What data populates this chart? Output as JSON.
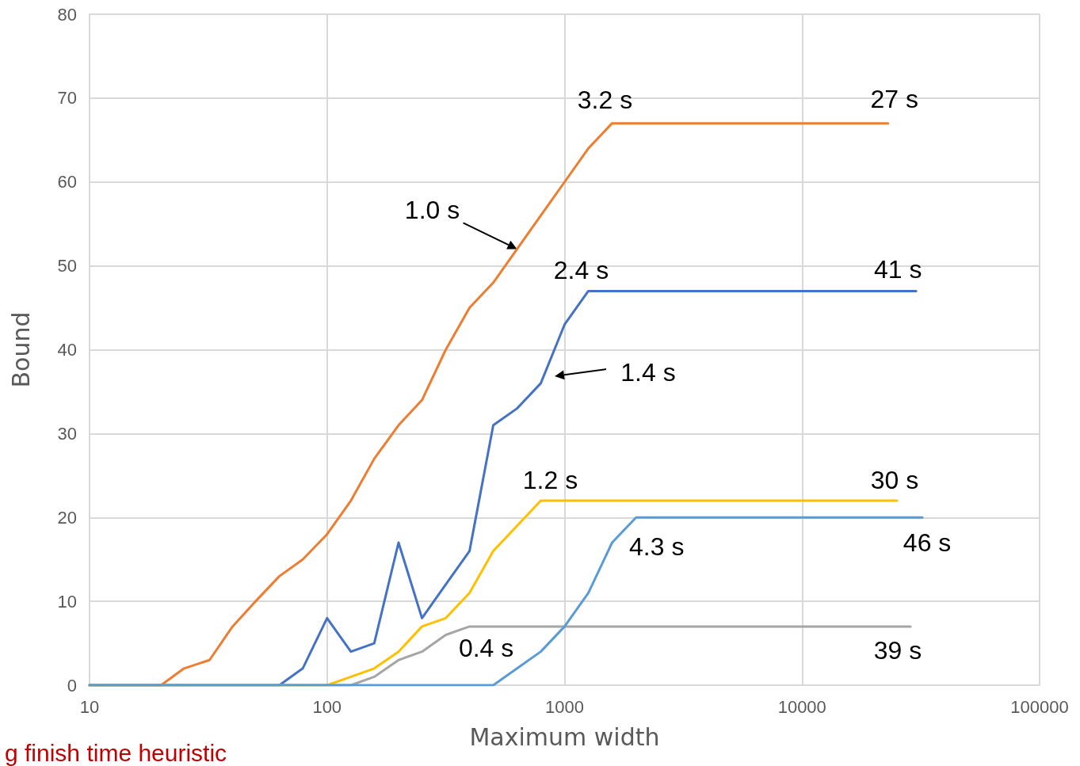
{
  "chart_data": {
    "type": "line",
    "xlabel": "Maximum width",
    "ylabel": "Bound",
    "log": "x",
    "xlim": [
      10,
      100000
    ],
    "xticks": [
      10,
      100,
      1000,
      10000,
      100000
    ],
    "ylim": [
      0,
      80
    ],
    "yticks": [
      0,
      10,
      20,
      30,
      40,
      50,
      60,
      70,
      80
    ],
    "grid": true,
    "marker": "none",
    "line_style": "solid",
    "series": [
      {
        "color": "#ed7d31",
        "x": [
          10,
          20,
          25,
          32,
          40,
          50,
          63,
          79,
          100,
          126,
          158,
          200,
          251,
          316,
          398,
          501,
          631,
          794,
          1000,
          1259,
          1585,
          23000
        ],
        "values": [
          0,
          0,
          2,
          3,
          7,
          10,
          13,
          15,
          18,
          22,
          27,
          31,
          34,
          40,
          45,
          48,
          52,
          56,
          60,
          64,
          67,
          67
        ]
      },
      {
        "color": "#4472c4",
        "x": [
          10,
          63,
          79,
          100,
          126,
          158,
          200,
          251,
          316,
          398,
          501,
          631,
          794,
          1000,
          1259,
          30200
        ],
        "values": [
          0,
          0,
          2,
          8,
          4,
          5,
          17,
          8,
          12,
          16,
          31,
          33,
          36,
          43,
          47,
          47
        ]
      },
      {
        "color": "#ffc000",
        "x": [
          10,
          100,
          126,
          158,
          200,
          251,
          316,
          398,
          501,
          631,
          794,
          25100
        ],
        "values": [
          0,
          0,
          1,
          2,
          4,
          7,
          8,
          11,
          16,
          19,
          22,
          22
        ]
      },
      {
        "color": "#a5a5a5",
        "x": [
          10,
          126,
          158,
          200,
          251,
          316,
          398,
          28600
        ],
        "values": [
          0,
          0,
          1,
          3,
          4,
          6,
          7,
          7
        ]
      },
      {
        "color": "#5b9bd5",
        "x": [
          10,
          501,
          631,
          794,
          1000,
          1259,
          1585,
          2000,
          32100
        ],
        "values": [
          0,
          0,
          2,
          4,
          7,
          11,
          17,
          20,
          20
        ]
      }
    ],
    "annotations": [
      {
        "text": "3.2 s",
        "x": 1585,
        "y": 67
      },
      {
        "text": "27 s",
        "x": 23000,
        "y": 67
      },
      {
        "text": "2.4 s",
        "x": 1259,
        "y": 47
      },
      {
        "text": "41 s",
        "x": 30200,
        "y": 47
      },
      {
        "text": "1.2 s",
        "x": 794,
        "y": 22
      },
      {
        "text": "30 s",
        "x": 25100,
        "y": 22
      },
      {
        "text": "4.3 s",
        "x": 2000,
        "y": 20
      },
      {
        "text": "46 s",
        "x": 32100,
        "y": 20
      },
      {
        "text": "0.4 s",
        "x": 398,
        "y": 7
      },
      {
        "text": "39 s",
        "x": 28600,
        "y": 7
      },
      {
        "text": "1.0 s",
        "x": 631,
        "y": 52
      },
      "1.4 s",
      "g finish time heuristic"
    ]
  }
}
